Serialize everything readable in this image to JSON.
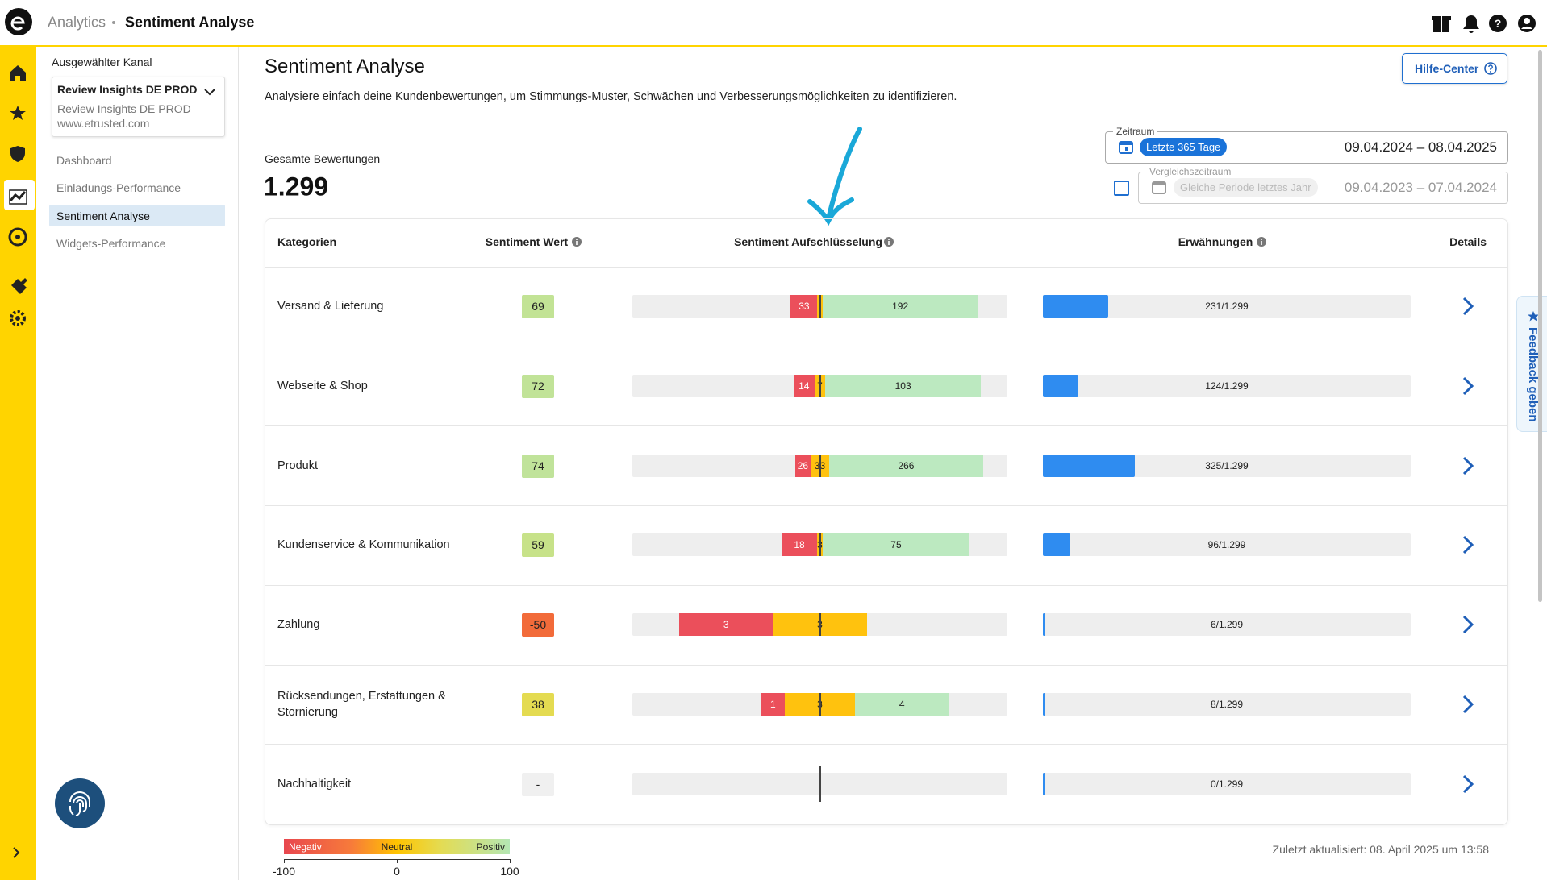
{
  "header": {
    "section": "Analytics",
    "page": "Sentiment Analyse"
  },
  "sidebar": {
    "channel_label": "Ausgewählter Kanal",
    "channel": {
      "name": "Review Insights DE PROD",
      "subtitle": "Review Insights DE PROD",
      "url": "www.etrusted.com"
    },
    "nav": [
      "Dashboard",
      "Einladungs-Performance",
      "Sentiment Analyse",
      "Widgets-Performance"
    ],
    "active_nav": 2
  },
  "main": {
    "title": "Sentiment Analyse",
    "description": "Analysiere einfach deine Kundenbewertungen, um Stimmungs-Muster, Schwächen und Verbesserungsmöglichkeiten zu identifizieren.",
    "help_button": "Hilfe-Center",
    "total_label": "Gesamte Bewertungen",
    "total_value": "1.299",
    "period": {
      "label": "Zeitraum",
      "chip": "Letzte 365 Tage",
      "range": "09.04.2024 – 08.04.2025"
    },
    "comparison": {
      "label": "Vergleichszeitraum",
      "chip": "Gleiche Periode letztes Jahr",
      "range": "09.04.2023 – 07.04.2024",
      "checked": false
    }
  },
  "table": {
    "columns": [
      "Kategorien",
      "Sentiment Wert",
      "Sentiment Aufschlüsselung",
      "Erwähnungen",
      "Details"
    ],
    "total_mentions": 1299,
    "colors": {
      "negative": "#eb4f5b",
      "neutral": "#ffc20e",
      "positive": "#bce9c0",
      "mentions": "#2f8cf0"
    },
    "rows": [
      {
        "category": "Versand & Lieferung",
        "score": 69,
        "negative": 33,
        "neutral": 6,
        "positive": 192,
        "mentions": 231,
        "mentions_label": "231/1.299"
      },
      {
        "category": "Webseite & Shop",
        "score": 72,
        "negative": 14,
        "neutral": 7,
        "positive": 103,
        "mentions": 124,
        "mentions_label": "124/1.299"
      },
      {
        "category": "Produkt",
        "score": 74,
        "negative": 26,
        "neutral": 33,
        "positive": 266,
        "mentions": 325,
        "mentions_label": "325/1.299"
      },
      {
        "category": "Kundenservice & Kommunikation",
        "score": 59,
        "negative": 18,
        "neutral": 3,
        "positive": 75,
        "mentions": 96,
        "mentions_label": "96/1.299"
      },
      {
        "category": "Zahlung",
        "score": -50,
        "negative": 3,
        "neutral": 3,
        "positive": 0,
        "mentions": 6,
        "mentions_label": "6/1.299"
      },
      {
        "category": "Rücksendungen, Erstattungen & Stornierung",
        "score": 38,
        "negative": 1,
        "neutral": 3,
        "positive": 4,
        "mentions": 8,
        "mentions_label": "8/1.299"
      },
      {
        "category": "Nachhaltigkeit",
        "score": null,
        "score_label": "-",
        "negative": 0,
        "neutral": 0,
        "positive": 0,
        "mentions": 0,
        "mentions_label": "0/1.299"
      }
    ]
  },
  "legend": {
    "labels": [
      "Negativ",
      "Neutral",
      "Positiv"
    ],
    "ticks": [
      -100,
      0,
      100
    ]
  },
  "footer": "Zuletzt aktualisiert: 08. April 2025 um 13:58",
  "feedback_tab": "Feedback geben"
}
